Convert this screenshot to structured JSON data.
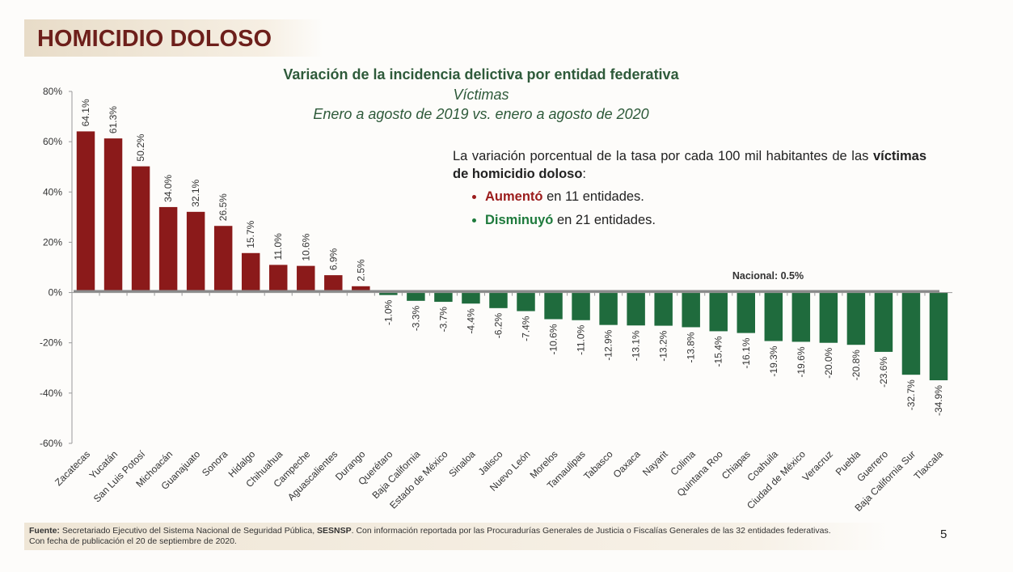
{
  "header": {
    "title": "HOMICIDIO DOLOSO"
  },
  "chart_data": {
    "type": "bar",
    "title": "Variación de la incidencia delictiva por entidad federativa",
    "subtitle": "Víctimas",
    "period": "Enero a agosto de 2019 vs. enero a agosto de 2020",
    "categories": [
      "Zacatecas",
      "Yucatán",
      "San Luis Potosí",
      "Michoacán",
      "Guanajuato",
      "Sonora",
      "Hidalgo",
      "Chihuahua",
      "Campeche",
      "Aguascalientes",
      "Durango",
      "Querétaro",
      "Baja California",
      "Estado de México",
      "Sinaloa",
      "Jalisco",
      "Nuevo León",
      "Morelos",
      "Tamaulipas",
      "Tabasco",
      "Oaxaca",
      "Nayarit",
      "Colima",
      "Quintana Roo",
      "Chiapas",
      "Coahuila",
      "Ciudad de México",
      "Veracruz",
      "Puebla",
      "Guerrero",
      "Baja California Sur",
      "Tlaxcala"
    ],
    "values": [
      64.1,
      61.3,
      50.2,
      34.0,
      32.1,
      26.5,
      15.7,
      11.0,
      10.6,
      6.9,
      2.5,
      -1.0,
      -3.3,
      -3.7,
      -4.4,
      -6.2,
      -7.4,
      -10.6,
      -11.0,
      -12.9,
      -13.1,
      -13.2,
      -13.8,
      -15.4,
      -16.1,
      -19.3,
      -19.6,
      -20.0,
      -20.8,
      -23.6,
      -32.7,
      -34.9
    ],
    "value_labels": [
      "64.1%",
      "61.3%",
      "50.2%",
      "34.0%",
      "32.1%",
      "26.5%",
      "15.7%",
      "11.0%",
      "10.6%",
      "6.9%",
      "2.5%",
      "-1.0%",
      "-3.3%",
      "-3.7%",
      "-4.4%",
      "-6.2%",
      "-7.4%",
      "-10.6%",
      "-11.0%",
      "-12.9%",
      "-13.1%",
      "-13.2%",
      "-13.8%",
      "-15.4%",
      "-16.1%",
      "-19.3%",
      "-19.6%",
      "-20.0%",
      "-20.8%",
      "-23.6%",
      "-32.7%",
      "-34.9%"
    ],
    "positive_color": "#8b1a1a",
    "negative_color": "#1f6b3d",
    "ylim": [
      -60,
      80
    ],
    "yticks": [
      {
        "value": -60,
        "label": "-60%"
      },
      {
        "value": -40,
        "label": "-40%"
      },
      {
        "value": -20,
        "label": "-20%"
      },
      {
        "value": 0,
        "label": "0%"
      },
      {
        "value": 20,
        "label": "20%"
      },
      {
        "value": 40,
        "label": "40%"
      },
      {
        "value": 60,
        "label": "60%"
      },
      {
        "value": 80,
        "label": "80%"
      }
    ],
    "reference": {
      "value": 0.5,
      "label": "Nacional: 0.5%"
    }
  },
  "note": {
    "intro": "La variación porcentual de la tasa por cada 100 mil habitantes de las",
    "intro_bold": "víctimas de homicidio doloso",
    "intro_end": ":",
    "bullets": [
      {
        "bold": "Aumentó",
        "text": "en 11 entidades."
      },
      {
        "bold": "Disminuyó",
        "text": "en 21 entidades."
      }
    ]
  },
  "footer": {
    "label": "Fuente:",
    "source": "Secretariado Ejecutivo del Sistema Nacional de Seguridad Pública,",
    "source_bold": "SESNSP",
    "source_end": ". Con información reportada por las Procuradurías Generales de Justicia o Fiscalías Generales de las 32 entidades federativas.",
    "line2": "Con fecha de publicación el 20 de septiembre de 2020."
  },
  "page_number": "5"
}
